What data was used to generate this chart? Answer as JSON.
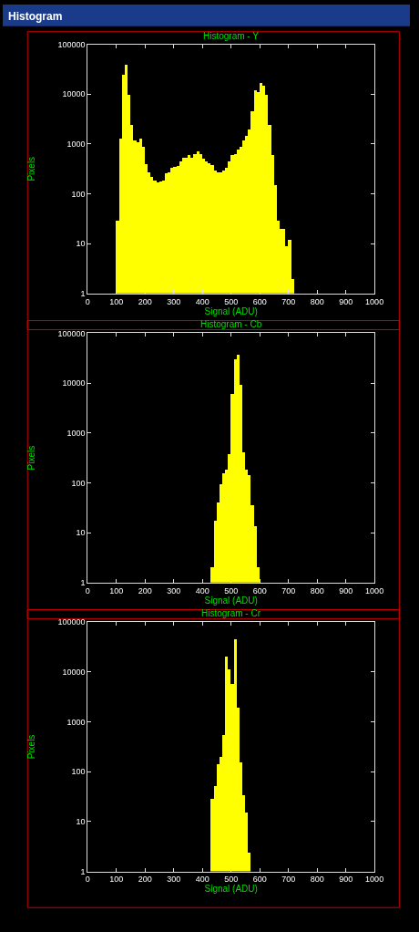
{
  "chart_data": [
    {
      "type": "histogram",
      "title": "Histogram - Y",
      "xlabel": "Signal (ADU)",
      "ylabel": "Pixels",
      "annotations": [
        "Histogram"
      ],
      "color": "#ffff00",
      "log": "y",
      "grid": false,
      "bins": [
        100,
        110,
        120,
        130,
        140,
        150,
        160,
        170,
        180,
        190,
        200,
        210,
        220,
        230,
        240,
        250,
        260,
        270,
        280,
        290,
        300,
        310,
        320,
        330,
        340,
        350,
        360,
        370,
        380,
        390,
        400,
        410,
        420,
        430,
        440,
        450,
        460,
        470,
        480,
        490,
        500,
        510,
        520,
        530,
        540,
        550,
        560,
        570,
        580,
        590,
        600,
        610,
        620,
        630,
        640,
        650,
        660,
        670,
        680,
        690,
        700,
        710,
        720
      ],
      "values": [
        30,
        1300,
        25000,
        40000,
        10000,
        2500,
        1200,
        1100,
        1300,
        900,
        400,
        280,
        220,
        190,
        175,
        180,
        190,
        260,
        270,
        340,
        350,
        370,
        450,
        530,
        550,
        600,
        550,
        630,
        720,
        630,
        520,
        460,
        420,
        390,
        300,
        270,
        280,
        300,
        340,
        450,
        600,
        630,
        780,
        900,
        1200,
        1500,
        2000,
        4700,
        12000,
        11000,
        17000,
        15000,
        10000,
        2500,
        600,
        150,
        30,
        20,
        20,
        9,
        12,
        2
      ],
      "xlim": [
        0,
        1000
      ],
      "xticks": [
        0,
        100,
        200,
        300,
        400,
        500,
        600,
        700,
        800,
        900,
        1000
      ],
      "ylim": [
        1,
        100000
      ],
      "yticks": [
        1,
        10,
        100,
        1000,
        10000,
        100000
      ]
    },
    {
      "type": "histogram",
      "title": "Histogram - Cb",
      "xlabel": "Signal (ADU)",
      "ylabel": "Pixels",
      "color": "#ffff00",
      "log": "y",
      "grid": false,
      "bins": [
        430,
        440,
        450,
        460,
        470,
        480,
        490,
        500,
        510,
        520,
        530,
        540,
        550,
        560,
        570,
        580,
        590,
        600
      ],
      "values": [
        2,
        17,
        40,
        90,
        150,
        180,
        370,
        6000,
        30000,
        36000,
        9000,
        400,
        180,
        140,
        35,
        13,
        2
      ],
      "xlim": [
        0,
        1000
      ],
      "xticks": [
        0,
        100,
        200,
        300,
        400,
        500,
        600,
        700,
        800,
        900,
        1000
      ],
      "ylim": [
        1,
        100000
      ],
      "yticks": [
        1,
        10,
        100,
        1000,
        10000,
        100000
      ]
    },
    {
      "type": "histogram",
      "title": "Histogram - Cr",
      "xlabel": "Signal (ADU)",
      "ylabel": "Pixels",
      "color": "#ffff00",
      "log": "y",
      "grid": false,
      "bins": [
        430,
        440,
        450,
        460,
        470,
        480,
        490,
        500,
        510,
        520,
        530,
        540,
        550,
        560,
        570
      ],
      "values": [
        28,
        50,
        140,
        200,
        540,
        20000,
        11000,
        5600,
        45000,
        1900,
        150,
        33,
        15,
        2.4
      ],
      "xlim": [
        0,
        1000
      ],
      "xticks": [
        0,
        100,
        200,
        300,
        400,
        500,
        600,
        700,
        800,
        900,
        1000
      ],
      "ylim": [
        1,
        100000
      ],
      "yticks": [
        1,
        10,
        100,
        1000,
        10000,
        100000
      ]
    }
  ]
}
